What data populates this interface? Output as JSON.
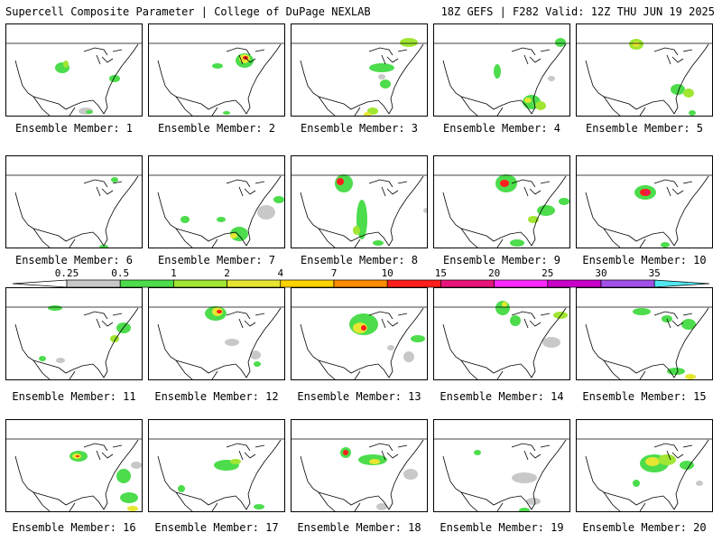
{
  "header": {
    "title_left": "Supercell Composite Parameter | College of DuPage NEXLAB",
    "title_right": "18Z GEFS | F282 Valid: 12Z THU JUN 19 2025"
  },
  "panels": [
    {
      "label": "Ensemble Member: 1"
    },
    {
      "label": "Ensemble Member: 2"
    },
    {
      "label": "Ensemble Member: 3"
    },
    {
      "label": "Ensemble Member: 4"
    },
    {
      "label": "Ensemble Member: 5"
    },
    {
      "label": "Ensemble Member: 6"
    },
    {
      "label": "Ensemble Member: 7"
    },
    {
      "label": "Ensemble Member: 8"
    },
    {
      "label": "Ensemble Member: 9"
    },
    {
      "label": "Ensemble Member: 10"
    },
    {
      "label": "Ensemble Member: 11"
    },
    {
      "label": "Ensemble Member: 12"
    },
    {
      "label": "Ensemble Member: 13"
    },
    {
      "label": "Ensemble Member: 14"
    },
    {
      "label": "Ensemble Member: 15"
    },
    {
      "label": "Ensemble Member: 16"
    },
    {
      "label": "Ensemble Member: 17"
    },
    {
      "label": "Ensemble Member: 18"
    },
    {
      "label": "Ensemble Member: 19"
    },
    {
      "label": "Ensemble Member: 20"
    }
  ],
  "colorbar": {
    "thresholds": [
      "0.25",
      "0.5",
      "1",
      "2",
      "4",
      "7",
      "10",
      "15",
      "20",
      "25",
      "30",
      "35"
    ],
    "colors": [
      "#c8c8c8",
      "#4cdc4c",
      "#a0e632",
      "#e6e632",
      "#ffd200",
      "#ff8c00",
      "#ff1e1e",
      "#e6147a",
      "#ff28ff",
      "#c800c8",
      "#a050e6",
      "#50e6f0",
      "#78ffff"
    ]
  }
}
